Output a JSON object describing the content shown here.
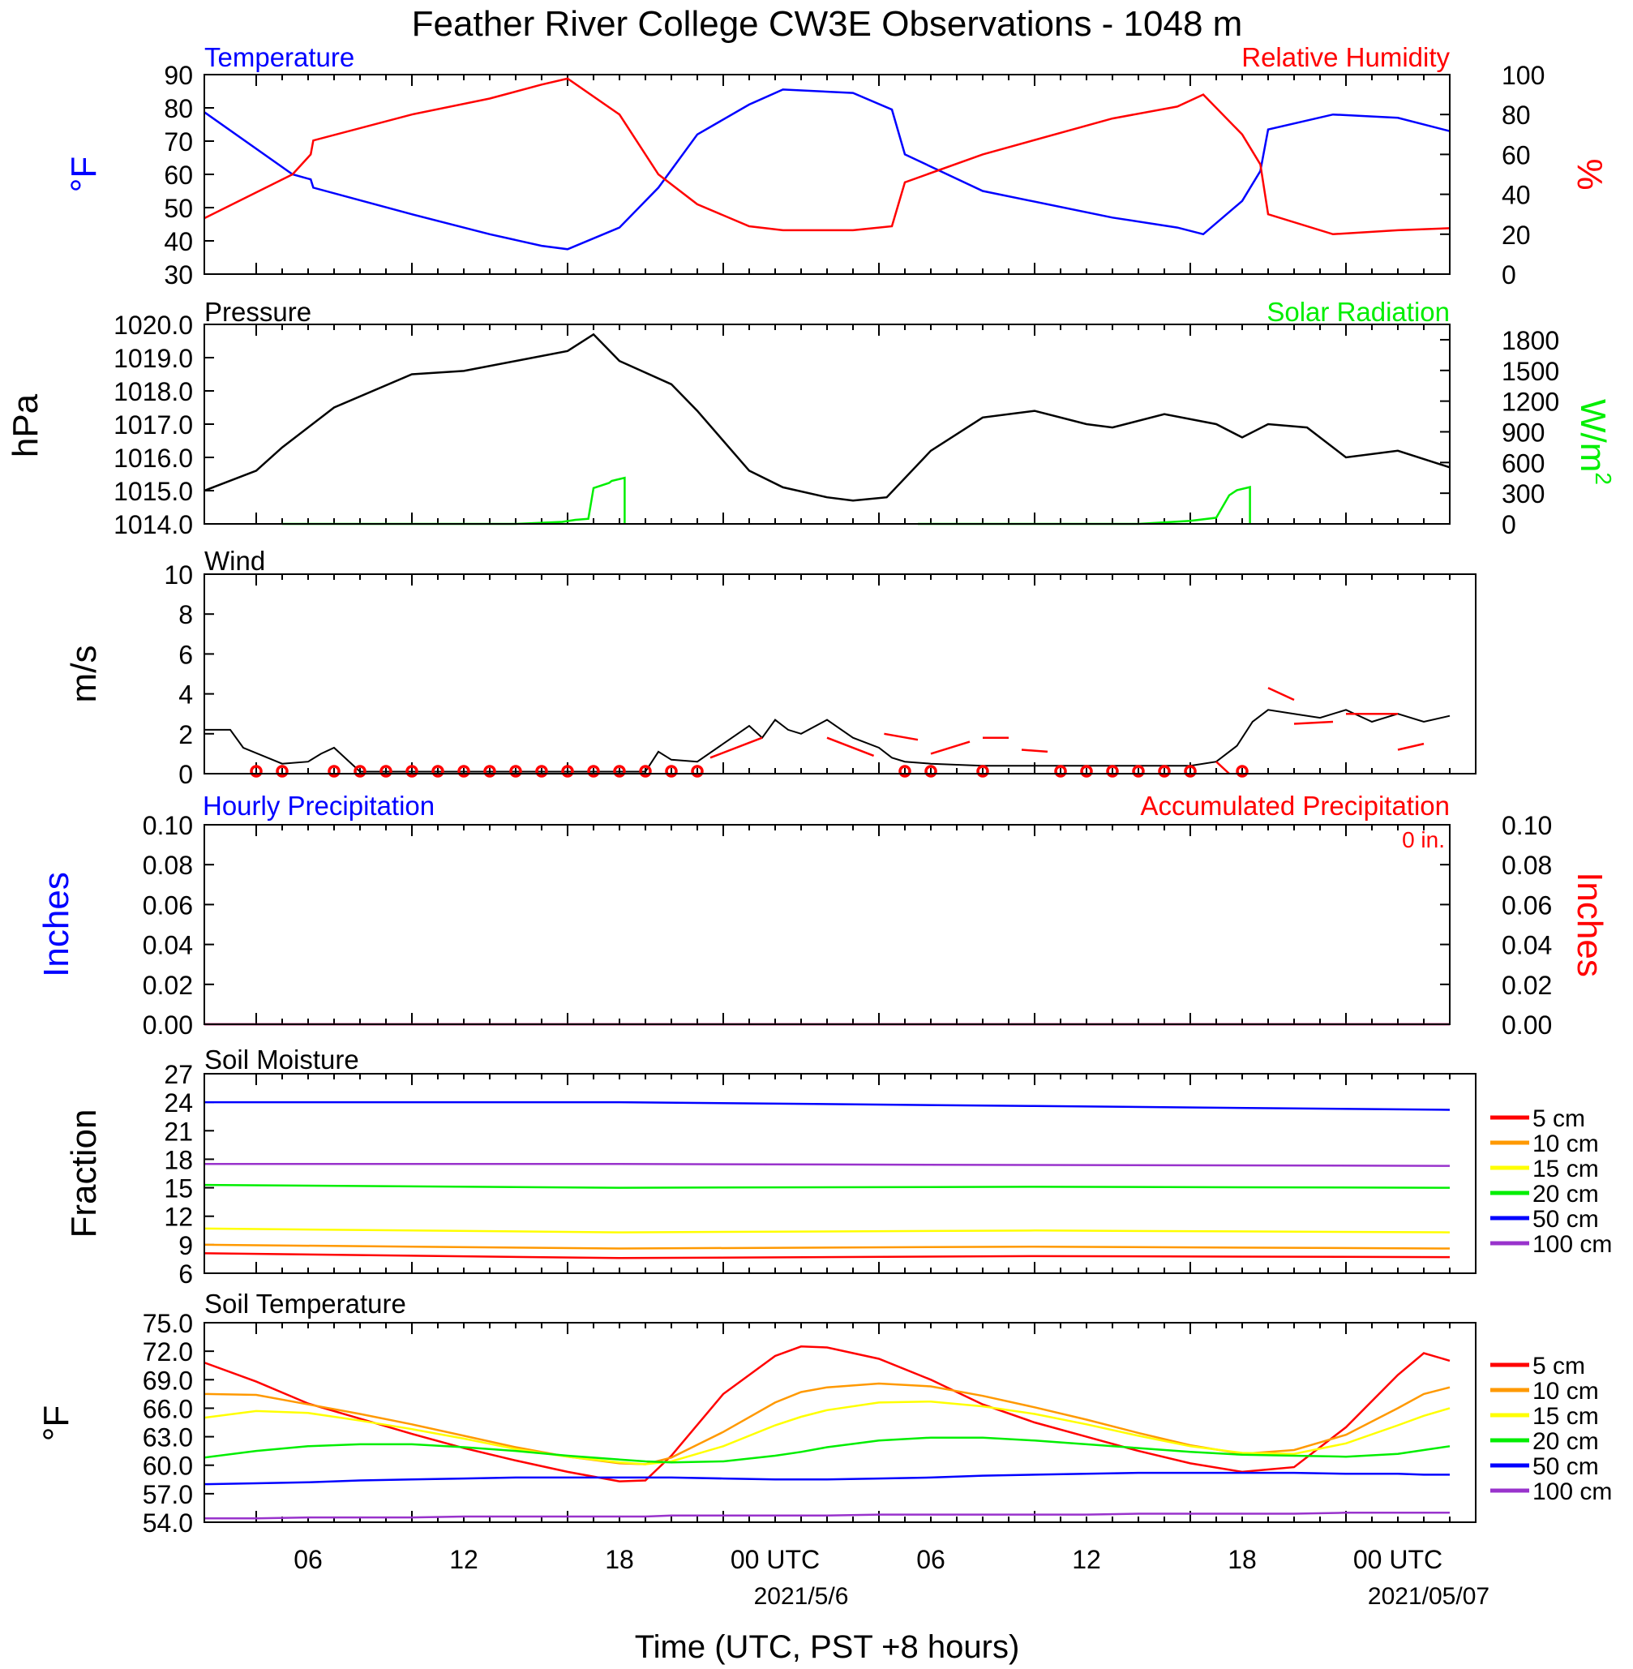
{
  "title": "Feather River College CW3E Observations - 1048 m",
  "xlabel": "Time (UTC, PST +8 hours)",
  "time_ticks": [
    "06",
    "12",
    "18",
    "00 UTC",
    "06",
    "12",
    "18",
    "00 UTC"
  ],
  "date_labels": [
    "2021/5/6",
    "2021/05/07"
  ],
  "colors": {
    "blue": "#0000ff",
    "red": "#ff0000",
    "green": "#00ee00",
    "black": "#000000",
    "orange": "#ff9900",
    "yellow": "#ffff00",
    "purple": "#9933cc"
  },
  "chart_data": [
    {
      "type": "line",
      "panel": "temperature-humidity",
      "x_hours": [
        0,
        3.4,
        4.1,
        4.2,
        8,
        11,
        13,
        14,
        16,
        17.5,
        19,
        21,
        22.3,
        25,
        26.5,
        27,
        30,
        35,
        37.5,
        38.5,
        40,
        40.7,
        41,
        43.5,
        46,
        48
      ],
      "series": [
        {
          "name": "Temperature",
          "values": [
            78.7,
            60,
            58.5,
            56,
            48,
            42,
            38.5,
            37.5,
            44,
            56,
            72,
            81,
            85.5,
            84.5,
            79.5,
            66,
            55,
            47,
            44,
            42,
            52,
            61,
            73.5,
            78,
            77,
            73
          ]
        },
        {
          "name": "Relative Humidity",
          "values": [
            28,
            50,
            60,
            67,
            80,
            88,
            95,
            98,
            80,
            50,
            35,
            24,
            22,
            22,
            24,
            46,
            60,
            78,
            84,
            90,
            70,
            55,
            30,
            20,
            22,
            23
          ]
        }
      ],
      "title_left": "Temperature",
      "title_right": "Relative Humidity",
      "ylabel_left": "°F",
      "ylabel_right": "%",
      "ylim_left": [
        30,
        90
      ],
      "ylim_right": [
        0,
        100
      ],
      "yticks_left": [
        "90",
        "80",
        "70",
        "60",
        "50",
        "40",
        "30"
      ],
      "yticks_right": [
        "100",
        "80",
        "60",
        "40",
        "20",
        "0"
      ]
    },
    {
      "type": "line",
      "panel": "pressure-solar",
      "pressure": {
        "x_hours": [
          0,
          2,
          3,
          5,
          8,
          10,
          12,
          14,
          15,
          16,
          18,
          19,
          21,
          22.3,
          24,
          25,
          26.3,
          28,
          30,
          32,
          34,
          35,
          37,
          39,
          40,
          40.5,
          41,
          42.5,
          44,
          46,
          48
        ],
        "values": [
          1015.0,
          1015.6,
          1016.3,
          1017.5,
          1018.5,
          1018.6,
          1018.9,
          1019.2,
          1019.7,
          1018.9,
          1018.2,
          1017.4,
          1015.6,
          1015.1,
          1014.8,
          1014.7,
          1014.8,
          1016.2,
          1017.2,
          1017.4,
          1017.0,
          1016.9,
          1017.3,
          1017.0,
          1016.6,
          1016.8,
          1017.0,
          1016.9,
          1016.0,
          1016.2,
          1015.7
        ]
      },
      "solar": {
        "segments": [
          {
            "x_hours": [
              3,
              12,
              13.8,
              14.3,
              14.8,
              15,
              15.6,
              15.7,
              16.2,
              16.2
            ],
            "values": [
              0,
              0,
              20,
              40,
              50,
              350,
              400,
              420,
              450,
              0
            ]
          },
          {
            "x_hours": [
              27.5,
              36,
              38,
              39,
              39.5,
              39.8,
              40.3,
              40.3
            ],
            "values": [
              0,
              0,
              30,
              60,
              280,
              330,
              360,
              0
            ]
          }
        ]
      },
      "title_left": "Pressure",
      "title_right": "Solar Radiation",
      "ylabel_left": "hPa",
      "ylabel_right": "W/m",
      "ylabel_right_sup": "2",
      "ylim_left": [
        1014.0,
        1020.0
      ],
      "ylim_right": [
        0,
        1950
      ],
      "yticks_left": [
        "1020.0",
        "1019.0",
        "1018.0",
        "1017.0",
        "1016.0",
        "1015.0",
        "1014.0"
      ],
      "yticks_right": [
        "1800",
        "1500",
        "1200",
        "900",
        "600",
        "300",
        "0"
      ]
    },
    {
      "type": "line",
      "panel": "wind",
      "speed": {
        "x_hours": [
          0,
          1,
          1.5,
          3,
          4,
          4.5,
          5,
          6,
          17,
          17.5,
          18,
          19,
          20,
          21,
          21.5,
          22,
          22.5,
          23,
          24,
          25,
          26,
          26.5,
          27,
          28,
          30,
          32,
          34,
          36,
          38,
          39,
          39.8,
          40.4,
          41,
          42,
          43,
          44,
          45,
          46,
          47,
          48
        ],
        "values": [
          2.2,
          2.2,
          1.3,
          0.5,
          0.6,
          1.0,
          1.3,
          0.1,
          0.1,
          1.1,
          0.7,
          0.6,
          1.5,
          2.4,
          1.8,
          2.7,
          2.2,
          2.0,
          2.7,
          1.8,
          1.3,
          0.8,
          0.6,
          0.5,
          0.4,
          0.4,
          0.4,
          0.4,
          0.4,
          0.6,
          1.4,
          2.6,
          3.2,
          3.0,
          2.8,
          3.2,
          2.6,
          3.0,
          2.6,
          2.9
        ]
      },
      "calm_hours": [
        2,
        3,
        5,
        6,
        7,
        8,
        9,
        10,
        11,
        12,
        13,
        14,
        15,
        16,
        17,
        18,
        19,
        27,
        28,
        30,
        33,
        34,
        35,
        36,
        37,
        38,
        40
      ],
      "gust_segments": [
        {
          "x_hours": [
            19.5,
            21.5
          ],
          "values": [
            0.8,
            1.8
          ]
        },
        {
          "x_hours": [
            24,
            25.8
          ],
          "values": [
            1.8,
            0.9
          ]
        },
        {
          "x_hours": [
            26.2,
            27.5
          ],
          "values": [
            2.0,
            1.7
          ]
        },
        {
          "x_hours": [
            28,
            29.5
          ],
          "values": [
            1.0,
            1.6
          ]
        },
        {
          "x_hours": [
            30,
            31
          ],
          "values": [
            1.8,
            1.8
          ]
        },
        {
          "x_hours": [
            31.5,
            32.5
          ],
          "values": [
            1.2,
            1.1
          ]
        },
        {
          "x_hours": [
            39,
            39.5
          ],
          "values": [
            0.6,
            0
          ]
        },
        {
          "x_hours": [
            41,
            42
          ],
          "values": [
            4.3,
            3.7
          ]
        },
        {
          "x_hours": [
            42,
            43.5
          ],
          "values": [
            2.5,
            2.6
          ]
        },
        {
          "x_hours": [
            44,
            46
          ],
          "values": [
            3.0,
            3.0
          ]
        },
        {
          "x_hours": [
            46,
            47
          ],
          "values": [
            1.2,
            1.5
          ]
        }
      ],
      "title_left": "Wind",
      "ylabel_left": "m/s",
      "ylim_left": [
        0,
        10
      ],
      "yticks_left": [
        "10",
        "8",
        "6",
        "4",
        "2",
        "0"
      ]
    },
    {
      "type": "line",
      "panel": "precipitation",
      "x_hours": [
        0,
        48
      ],
      "series": [
        {
          "name": "Hourly Precipitation",
          "values": [
            0,
            0
          ]
        },
        {
          "name": "Accumulated Precipitation",
          "values": [
            0,
            0
          ]
        }
      ],
      "title_left": "Hourly Precipitation",
      "title_right": "Accumulated Precipitation",
      "annotation": "0 in.",
      "ylabel_left": "Inches",
      "ylabel_right": "Inches",
      "ylim_left": [
        0,
        0.1
      ],
      "ylim_right": [
        0,
        0.1
      ],
      "yticks_left": [
        "0.10",
        "0.08",
        "0.06",
        "0.04",
        "0.02",
        "0.00"
      ],
      "yticks_right": [
        "0.10",
        "0.08",
        "0.06",
        "0.04",
        "0.02",
        "0.00"
      ]
    },
    {
      "type": "line",
      "panel": "soil-moisture",
      "x_hours": [
        0,
        16,
        32,
        48
      ],
      "series": [
        {
          "name": "5 cm",
          "values": [
            8.1,
            7.6,
            7.8,
            7.7
          ]
        },
        {
          "name": "10 cm",
          "values": [
            9.0,
            8.6,
            8.8,
            8.6
          ]
        },
        {
          "name": "15 cm",
          "values": [
            10.7,
            10.3,
            10.5,
            10.3
          ]
        },
        {
          "name": "20 cm",
          "values": [
            15.3,
            15.0,
            15.1,
            15.0
          ]
        },
        {
          "name": "50 cm",
          "values": [
            24.0,
            24.0,
            23.6,
            23.2
          ]
        },
        {
          "name": "100 cm",
          "values": [
            17.5,
            17.5,
            17.4,
            17.3
          ]
        }
      ],
      "title_left": "Soil Moisture",
      "ylabel_left": "Fraction",
      "ylim_left": [
        6,
        27
      ],
      "yticks_left": [
        "27",
        "24",
        "21",
        "18",
        "15",
        "12",
        "9",
        "6"
      ]
    },
    {
      "type": "line",
      "panel": "soil-temperature",
      "x_hours": [
        0,
        2,
        4,
        6,
        8,
        10,
        12,
        14,
        16,
        17,
        18,
        20,
        22,
        23,
        24,
        26,
        28,
        30,
        32,
        34,
        36,
        38,
        40,
        42,
        44,
        46,
        47,
        48
      ],
      "series": [
        {
          "name": "5 cm",
          "values": [
            70.8,
            68.8,
            66.5,
            64.9,
            63.3,
            61.8,
            60.5,
            59.3,
            58.3,
            58.4,
            61.0,
            67.5,
            71.5,
            72.5,
            72.4,
            71.2,
            69.0,
            66.4,
            64.5,
            63.0,
            61.5,
            60.2,
            59.3,
            59.8,
            64.0,
            69.5,
            71.8,
            71.0
          ]
        },
        {
          "name": "10 cm",
          "values": [
            67.5,
            67.4,
            66.4,
            65.4,
            64.3,
            63.1,
            61.9,
            60.9,
            60.2,
            60.1,
            60.8,
            63.5,
            66.6,
            67.7,
            68.2,
            68.6,
            68.3,
            67.3,
            66.1,
            64.8,
            63.4,
            62.1,
            61.2,
            61.6,
            63.2,
            66.0,
            67.5,
            68.2
          ]
        },
        {
          "name": "15 cm",
          "values": [
            65.0,
            65.7,
            65.5,
            64.7,
            63.8,
            62.8,
            61.7,
            60.9,
            60.3,
            60.1,
            60.4,
            62.0,
            64.2,
            65.1,
            65.8,
            66.6,
            66.7,
            66.2,
            65.4,
            64.3,
            63.1,
            62.0,
            61.3,
            61.2,
            62.3,
            64.2,
            65.2,
            66.0
          ]
        },
        {
          "name": "20 cm",
          "values": [
            60.8,
            61.5,
            62.0,
            62.2,
            62.2,
            61.9,
            61.5,
            61.0,
            60.6,
            60.4,
            60.3,
            60.4,
            61.0,
            61.4,
            61.9,
            62.6,
            62.9,
            62.9,
            62.6,
            62.2,
            61.8,
            61.4,
            61.1,
            61.0,
            60.9,
            61.2,
            61.6,
            62.0
          ]
        },
        {
          "name": "50 cm",
          "values": [
            58.0,
            58.1,
            58.2,
            58.4,
            58.5,
            58.6,
            58.7,
            58.7,
            58.7,
            58.7,
            58.7,
            58.6,
            58.5,
            58.5,
            58.5,
            58.6,
            58.7,
            58.9,
            59.0,
            59.1,
            59.2,
            59.2,
            59.2,
            59.2,
            59.1,
            59.1,
            59.0,
            59.0
          ]
        },
        {
          "name": "100 cm",
          "values": [
            54.4,
            54.4,
            54.5,
            54.5,
            54.5,
            54.6,
            54.6,
            54.6,
            54.6,
            54.6,
            54.7,
            54.7,
            54.7,
            54.7,
            54.7,
            54.8,
            54.8,
            54.8,
            54.8,
            54.8,
            54.9,
            54.9,
            54.9,
            54.9,
            55.0,
            55.0,
            55.0,
            55.0
          ]
        }
      ],
      "title_left": "Soil Temperature",
      "ylabel_left": "°F",
      "ylim_left": [
        54,
        75
      ],
      "yticks_left": [
        "75.0",
        "72.0",
        "69.0",
        "66.0",
        "63.0",
        "60.0",
        "57.0",
        "54.0"
      ]
    }
  ],
  "soil_legend": [
    "5 cm",
    "10 cm",
    "15 cm",
    "20 cm",
    "50 cm",
    "100 cm"
  ]
}
